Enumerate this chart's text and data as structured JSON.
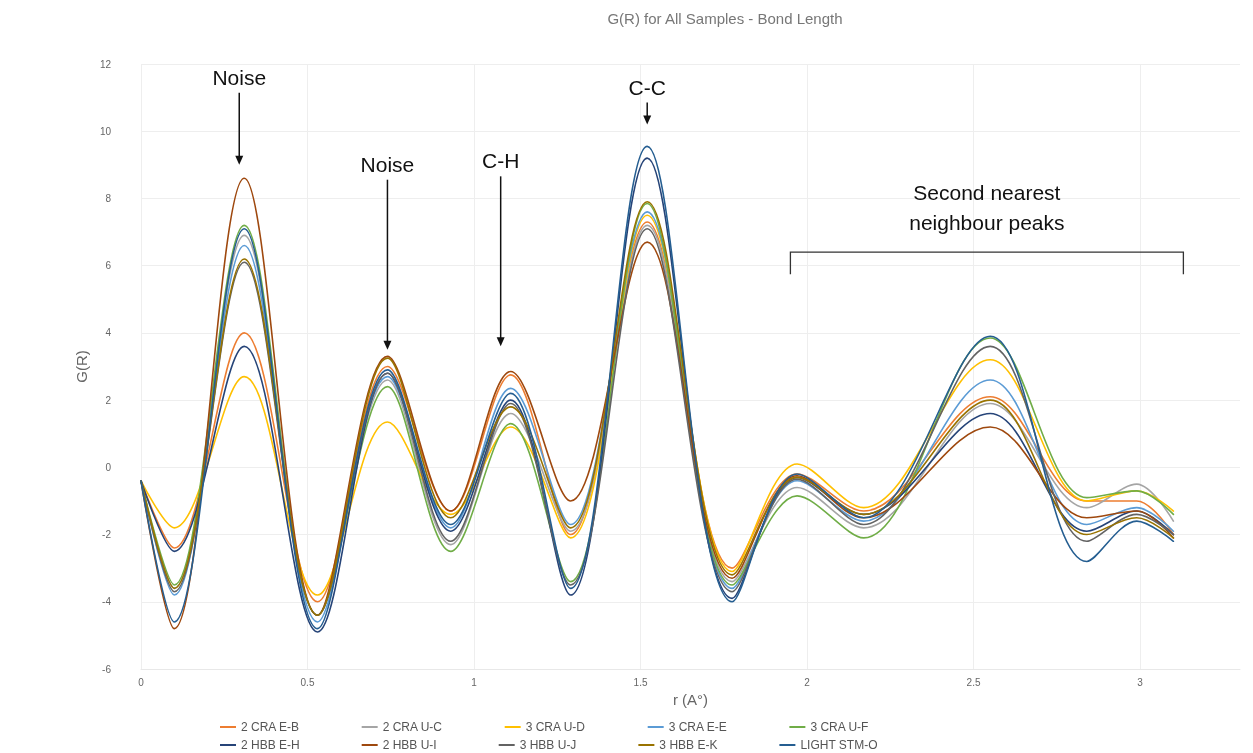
{
  "chart_data": {
    "type": "line",
    "title": "G(R) for All Samples - Bond Length",
    "xlabel": "r (A°)",
    "ylabel": "G(R)",
    "x": [
      0,
      0.1,
      0.31,
      0.53,
      0.74,
      0.93,
      1.11,
      1.29,
      1.52,
      1.775,
      1.97,
      2.17,
      2.55,
      2.84,
      2.99,
      3.1
    ],
    "series": [
      {
        "name": "2 CRA E-B",
        "color": "#ed7d31",
        "values": [
          -0.4,
          -2.4,
          4.0,
          -4.0,
          3.0,
          -1.3,
          2.75,
          -2.0,
          7.3,
          -3.0,
          -0.2,
          -1.3,
          2.1,
          -1.0,
          -1.0,
          -2.0
        ]
      },
      {
        "name": "2 CRA U-C",
        "color": "#a5a5a5",
        "values": [
          -0.4,
          -3.6,
          6.9,
          -4.4,
          2.6,
          -2.3,
          1.6,
          -1.9,
          7.2,
          -3.4,
          -0.6,
          -1.8,
          1.9,
          -1.2,
          -0.5,
          -1.6
        ]
      },
      {
        "name": "3 CRA U-D",
        "color": "#ffc000",
        "values": [
          -0.4,
          -1.8,
          2.7,
          -3.8,
          1.35,
          -1.4,
          1.2,
          -2.1,
          7.5,
          -3.1,
          0.1,
          -1.2,
          3.2,
          -1.0,
          -0.7,
          -1.3
        ]
      },
      {
        "name": "3 CRA E-E",
        "color": "#5b9bd5",
        "values": [
          -0.4,
          -3.8,
          6.6,
          -4.6,
          2.7,
          -1.8,
          2.35,
          -1.7,
          7.6,
          -3.6,
          -0.4,
          -1.6,
          2.6,
          -1.7,
          -1.2,
          -1.9
        ]
      },
      {
        "name": "3 CRA U-F",
        "color": "#70ad47",
        "values": [
          -0.4,
          -3.5,
          7.2,
          -4.4,
          2.4,
          -2.5,
          1.3,
          -3.4,
          7.85,
          -3.5,
          -0.85,
          -2.1,
          3.85,
          -0.9,
          -0.7,
          -1.4
        ]
      },
      {
        "name": "2 HBB E-H",
        "color": "#264478",
        "values": [
          -0.4,
          -2.5,
          3.6,
          -4.9,
          2.8,
          -1.9,
          2.0,
          -3.8,
          9.2,
          -3.9,
          -0.3,
          -1.4,
          1.6,
          -1.9,
          -1.3,
          -2.0
        ]
      },
      {
        "name": "2 HBB U-I",
        "color": "#9e480e",
        "values": [
          -0.4,
          -4.8,
          8.6,
          -4.4,
          3.3,
          -1.3,
          2.85,
          -1.0,
          6.7,
          -3.3,
          -0.25,
          -1.5,
          1.2,
          -1.5,
          -1.3,
          -2.1
        ]
      },
      {
        "name": "3 HBB U-J",
        "color": "#636363",
        "values": [
          -0.4,
          -3.7,
          6.1,
          -4.4,
          2.8,
          -2.2,
          1.9,
          -3.5,
          7.1,
          -3.7,
          -0.35,
          -1.7,
          3.6,
          -2.2,
          -1.4,
          -2.0
        ]
      },
      {
        "name": "3 HBB E-K",
        "color": "#997300",
        "values": [
          -0.4,
          -3.6,
          6.2,
          -4.4,
          3.25,
          -1.5,
          1.8,
          -1.8,
          7.9,
          -3.2,
          -0.3,
          -1.4,
          2.0,
          -2.0,
          -1.5,
          -2.1
        ]
      },
      {
        "name": "LIGHT STM-O",
        "color": "#255e91",
        "values": [
          -0.4,
          -4.6,
          7.1,
          -4.8,
          2.9,
          -1.7,
          2.2,
          -3.6,
          9.55,
          -4.0,
          -0.2,
          -1.5,
          3.9,
          -2.8,
          -1.6,
          -2.2
        ]
      }
    ],
    "xlim": [
      0,
      3.3
    ],
    "xticks": [
      0,
      0.5,
      1,
      1.5,
      2,
      2.5,
      3
    ],
    "ylim": [
      -6,
      12
    ],
    "yticks": [
      -6,
      -4,
      -2,
      0,
      2,
      4,
      6,
      8,
      10,
      12
    ],
    "grid": true,
    "legend": "bottom",
    "marker": "none",
    "line_style": "solid",
    "annotations": [
      "Noise",
      "Noise",
      "C-H",
      "C-C",
      "Second nearest neighbour peaks"
    ]
  }
}
